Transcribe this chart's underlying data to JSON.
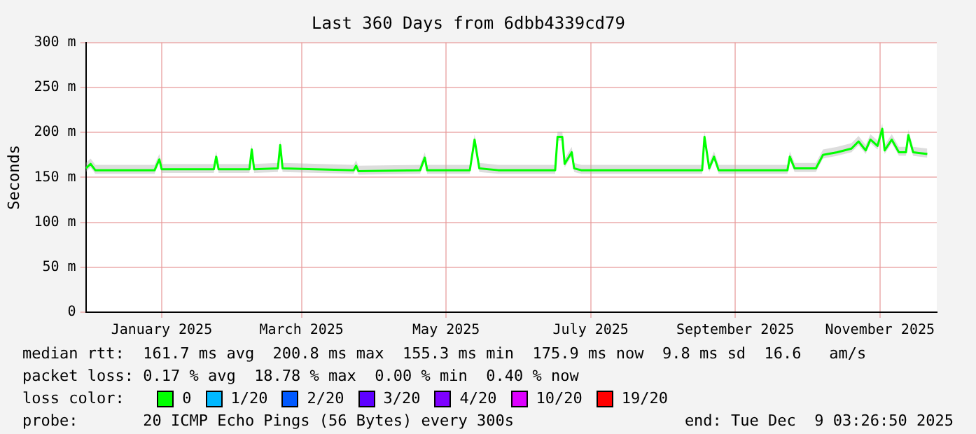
{
  "chart_data": {
    "type": "line",
    "title": "Last 360 Days from 6dbb4339cd79",
    "ylabel": "Seconds",
    "legend_title": "loss color:",
    "legend": "bottom",
    "grid": true,
    "marker": "none",
    "line_style": "solid",
    "x": [
      "2024-12-15",
      "2024-12-17",
      "2024-12-19",
      "2025-01-03",
      "2025-01-13",
      "2025-01-15",
      "2025-01-16",
      "2025-02-07",
      "2025-02-08",
      "2025-02-09",
      "2025-02-22",
      "2025-02-23",
      "2025-02-24",
      "2025-03-06",
      "2025-03-07",
      "2025-03-08",
      "2025-04-07",
      "2025-04-08",
      "2025-04-09",
      "2025-05-05",
      "2025-05-07",
      "2025-05-08",
      "2025-05-26",
      "2025-05-28",
      "2025-05-30",
      "2025-06-07",
      "2025-06-16",
      "2025-07-01",
      "2025-07-02",
      "2025-07-04",
      "2025-07-05",
      "2025-07-08",
      "2025-07-09",
      "2025-07-12",
      "2025-08-17",
      "2025-09-01",
      "2025-09-02",
      "2025-09-04",
      "2025-09-06",
      "2025-09-08",
      "2025-09-21",
      "2025-10-07",
      "2025-10-08",
      "2025-10-10",
      "2025-10-19",
      "2025-10-22",
      "2025-10-28",
      "2025-11-03",
      "2025-11-06",
      "2025-11-09",
      "2025-11-11",
      "2025-11-14",
      "2025-11-16",
      "2025-11-17",
      "2025-11-20",
      "2025-11-23",
      "2025-11-26",
      "2025-11-27",
      "2025-11-29",
      "2025-12-05"
    ],
    "series": [
      {
        "name": "0",
        "color": "#00ff00",
        "values": [
          160,
          165,
          158,
          158,
          158,
          170,
          159,
          159,
          173,
          159,
          159,
          181,
          159,
          160,
          186,
          160,
          158,
          163,
          157,
          158,
          172,
          158,
          158,
          192,
          160,
          158,
          158,
          158,
          195,
          195,
          165,
          178,
          160,
          158,
          158,
          158,
          195,
          160,
          173,
          158,
          158,
          158,
          173,
          160,
          160,
          175,
          178,
          182,
          190,
          180,
          192,
          185,
          204,
          180,
          192,
          178,
          178,
          197,
          178,
          176
        ],
        "lower": [
          156,
          161,
          154,
          154,
          154,
          166,
          155,
          155,
          169,
          155,
          155,
          177,
          155,
          156,
          182,
          156,
          154,
          159,
          153,
          154,
          168,
          154,
          154,
          188,
          156,
          154,
          154,
          154,
          191,
          191,
          161,
          174,
          156,
          154,
          154,
          154,
          191,
          156,
          169,
          154,
          154,
          154,
          169,
          156,
          156,
          171,
          174,
          178,
          186,
          176,
          188,
          181,
          200,
          176,
          188,
          174,
          174,
          193,
          174,
          172
        ],
        "upper": [
          166,
          171,
          164,
          164,
          164,
          176,
          165,
          165,
          179,
          165,
          165,
          187,
          165,
          166,
          192,
          166,
          164,
          169,
          163,
          164,
          178,
          164,
          164,
          198,
          166,
          164,
          164,
          164,
          201,
          201,
          171,
          184,
          166,
          164,
          164,
          164,
          201,
          166,
          179,
          164,
          164,
          164,
          179,
          166,
          166,
          181,
          184,
          188,
          196,
          186,
          198,
          191,
          210,
          186,
          198,
          184,
          184,
          203,
          184,
          182
        ]
      },
      {
        "name": "1/20",
        "color": "#00b8ff",
        "values": [
          null,
          null,
          null,
          null,
          null,
          null,
          null,
          null,
          null,
          null,
          null,
          null,
          null,
          null,
          null,
          null,
          null,
          null,
          null,
          null,
          null,
          null,
          null,
          null,
          null,
          null,
          null,
          null,
          null,
          null,
          null,
          null,
          null,
          null,
          null,
          null,
          null,
          null,
          null,
          null,
          null,
          null,
          null,
          null,
          null,
          null,
          null,
          null,
          null,
          null,
          null,
          null,
          null,
          null,
          null,
          null,
          null,
          null,
          null,
          null
        ]
      },
      {
        "name": "2/20",
        "color": "#0059ff",
        "values": [
          null,
          null,
          null,
          null,
          null,
          null,
          null,
          null,
          null,
          null,
          null,
          null,
          null,
          null,
          null,
          null,
          null,
          null,
          null,
          null,
          null,
          null,
          null,
          null,
          null,
          null,
          null,
          null,
          null,
          null,
          null,
          null,
          null,
          null,
          null,
          null,
          null,
          null,
          null,
          null,
          null,
          null,
          null,
          null,
          null,
          null,
          null,
          null,
          null,
          null,
          null,
          null,
          null,
          null,
          null,
          null,
          null,
          null,
          null,
          null
        ]
      },
      {
        "name": "3/20",
        "color": "#5e00ff",
        "values": [
          null,
          null,
          null,
          null,
          null,
          null,
          null,
          null,
          null,
          null,
          null,
          null,
          null,
          null,
          null,
          null,
          null,
          null,
          null,
          null,
          null,
          null,
          null,
          null,
          null,
          null,
          null,
          null,
          null,
          null,
          null,
          null,
          null,
          null,
          null,
          null,
          null,
          null,
          null,
          null,
          null,
          null,
          null,
          null,
          null,
          null,
          null,
          null,
          null,
          null,
          null,
          null,
          null,
          null,
          null,
          null,
          null,
          null,
          null,
          null
        ]
      },
      {
        "name": "4/20",
        "color": "#7e00ff",
        "values": [
          null,
          null,
          null,
          null,
          null,
          null,
          null,
          null,
          null,
          null,
          null,
          null,
          null,
          null,
          null,
          null,
          null,
          null,
          null,
          null,
          null,
          null,
          null,
          null,
          null,
          null,
          null,
          null,
          null,
          null,
          null,
          null,
          null,
          null,
          null,
          null,
          null,
          null,
          null,
          null,
          null,
          null,
          null,
          null,
          null,
          null,
          null,
          null,
          null,
          null,
          null,
          null,
          null,
          null,
          null,
          null,
          null,
          null,
          null,
          null
        ]
      },
      {
        "name": "10/20",
        "color": "#dd00ff",
        "values": [
          null,
          null,
          null,
          null,
          null,
          null,
          null,
          null,
          null,
          null,
          null,
          null,
          null,
          null,
          null,
          null,
          null,
          null,
          null,
          null,
          null,
          null,
          null,
          null,
          null,
          null,
          null,
          null,
          null,
          null,
          null,
          null,
          null,
          null,
          null,
          null,
          null,
          null,
          null,
          null,
          null,
          null,
          null,
          null,
          null,
          null,
          null,
          null,
          null,
          null,
          null,
          null,
          null,
          null,
          null,
          null,
          null,
          null,
          null,
          null
        ]
      },
      {
        "name": "19/20",
        "color": "#ff0000",
        "values": [
          null,
          null,
          null,
          null,
          null,
          null,
          null,
          null,
          null,
          null,
          null,
          null,
          null,
          null,
          null,
          null,
          null,
          null,
          null,
          null,
          null,
          null,
          null,
          null,
          null,
          null,
          null,
          null,
          null,
          null,
          null,
          null,
          null,
          null,
          null,
          null,
          null,
          null,
          null,
          null,
          null,
          null,
          null,
          null,
          null,
          null,
          null,
          null,
          null,
          null,
          null,
          null,
          null,
          null,
          null,
          null,
          null,
          null,
          null,
          null
        ]
      }
    ],
    "xlim": [
      "2024-12-15",
      "2025-12-09"
    ],
    "xticks": [
      {
        "value": "2025-01-16",
        "label": "January 2025"
      },
      {
        "value": "2025-03-16",
        "label": "March 2025"
      },
      {
        "value": "2025-05-16",
        "label": "May 2025"
      },
      {
        "value": "2025-07-16",
        "label": "July 2025"
      },
      {
        "value": "2025-09-15",
        "label": "September 2025"
      },
      {
        "value": "2025-11-15",
        "label": "November 2025"
      }
    ],
    "ylim": [
      0,
      300
    ],
    "yticks": [
      0,
      {
        "value": 50,
        "label": "50 m"
      },
      {
        "value": 100,
        "label": "100 m"
      },
      {
        "value": 150,
        "label": "150 m"
      },
      {
        "value": 200,
        "label": "200 m"
      },
      {
        "value": 250,
        "label": "250 m"
      },
      {
        "value": 300,
        "label": "300 m"
      }
    ],
    "annotations": [
      "median rtt:  161.7 ms avg  200.8 ms max  155.3 ms min  175.9 ms now  9.8 ms sd  16.6   am/s",
      "packet loss: 0.17 % avg  18.78 % max  0.00 % min  0.40 % now",
      "probe:       20 ICMP Echo Pings (56 Bytes) every 300s",
      "end: Tue Dec  9 03:26:50 2025"
    ]
  }
}
